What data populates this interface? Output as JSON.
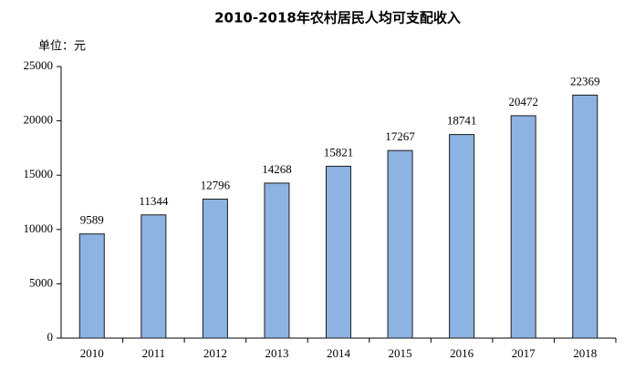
{
  "chart_data": {
    "type": "bar",
    "title": "2010-2018年农村居民人均可支配收入",
    "unit_label": "单位：元",
    "categories": [
      "2010",
      "2011",
      "2012",
      "2013",
      "2014",
      "2015",
      "2016",
      "2017",
      "2018"
    ],
    "values": [
      9589,
      11344,
      12796,
      14268,
      15821,
      17267,
      18741,
      20472,
      22369
    ],
    "color": "#8db3e2",
    "ylim": [
      0,
      25000
    ],
    "yticks": [
      0,
      5000,
      10000,
      15000,
      20000,
      25000
    ],
    "grid": false,
    "data_labels": true
  }
}
